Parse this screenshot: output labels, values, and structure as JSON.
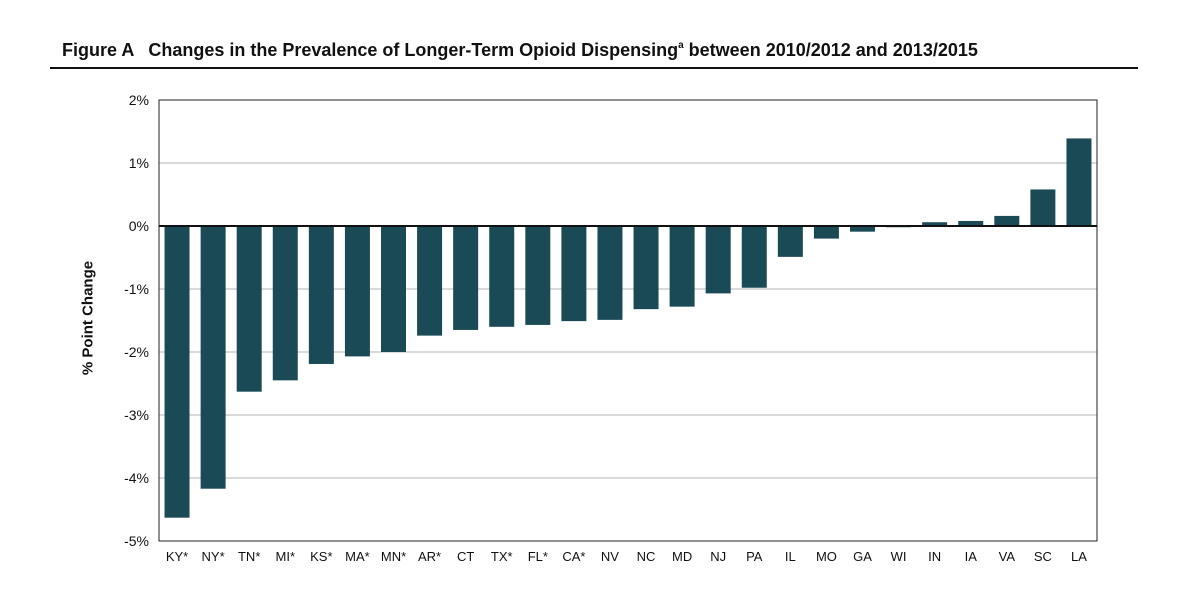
{
  "header": {
    "figure_label": "Figure A",
    "title_main": "Changes in the Prevalence of Longer-Term Opioid Dispensing",
    "title_sup": "a",
    "title_end": " between 2010/2012 and 2013/2015"
  },
  "chart_data": {
    "type": "bar",
    "title": "Changes in the Prevalence of Longer-Term Opioid Dispensing between 2010/2012 and 2013/2015",
    "xlabel": "",
    "ylabel": "% Point Change",
    "ylim": [
      -5,
      2
    ],
    "yticks": [
      2,
      1,
      0,
      -1,
      -2,
      -3,
      -4,
      -5
    ],
    "ytick_labels": [
      "2%",
      "1%",
      "0%",
      "-1%",
      "-2%",
      "-3%",
      "-4%",
      "-5%"
    ],
    "grid": true,
    "bar_color": "#1a4a55",
    "categories": [
      "KY*",
      "NY*",
      "TN*",
      "MI*",
      "KS*",
      "MA*",
      "MN*",
      "AR*",
      "CT",
      "TX*",
      "FL*",
      "CA*",
      "NV",
      "NC",
      "MD",
      "NJ",
      "PA",
      "IL",
      "MO",
      "GA",
      "WI",
      "IN",
      "IA",
      "VA",
      "SC",
      "LA"
    ],
    "values": [
      -4.63,
      -4.17,
      -2.63,
      -2.45,
      -2.19,
      -2.07,
      -2.0,
      -1.74,
      -1.65,
      -1.6,
      -1.57,
      -1.51,
      -1.49,
      -1.32,
      -1.28,
      -1.07,
      -0.98,
      -0.49,
      -0.2,
      -0.09,
      -0.02,
      0.06,
      0.08,
      0.16,
      0.58,
      1.39
    ]
  }
}
